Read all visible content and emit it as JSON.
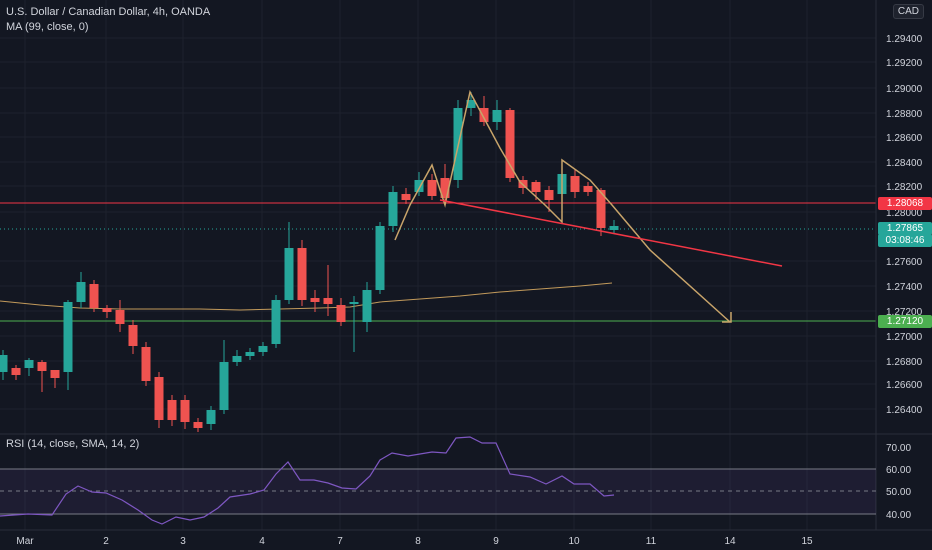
{
  "header": {
    "symbol_line": "U.S. Dollar / Canadian Dollar, 4h, OANDA",
    "ma_line": "MA (99, close, 0)",
    "currency": "CAD"
  },
  "rsi_panel": {
    "label": "RSI (14, close, SMA, 14, 2)",
    "ticks": [
      "70.00",
      "60.00",
      "50.00",
      "40.00"
    ]
  },
  "price_axis": {
    "ticks": [
      "1.29400",
      "1.29200",
      "1.29000",
      "1.28800",
      "1.28600",
      "1.28400",
      "1.28200",
      "1.28000",
      "1.27600",
      "1.27400",
      "1.27200",
      "1.27000",
      "1.26800",
      "1.26600",
      "1.26400"
    ],
    "resistance_label": "1.28068",
    "last_price_label": "1.27865",
    "countdown_label": "03:08:46",
    "support_label": "1.27120"
  },
  "time_axis": {
    "labels": [
      "Mar",
      "2",
      "3",
      "4",
      "7",
      "8",
      "9",
      "10",
      "11",
      "14",
      "15"
    ]
  },
  "colors": {
    "bull": "#26a69a",
    "bear": "#ef5350",
    "background": "#131722",
    "ma": "#c29a5b",
    "pattern": "#c8a46a",
    "resistance": "#f23645",
    "support": "#4caf50",
    "rsi_line": "#7e57c2"
  }
}
